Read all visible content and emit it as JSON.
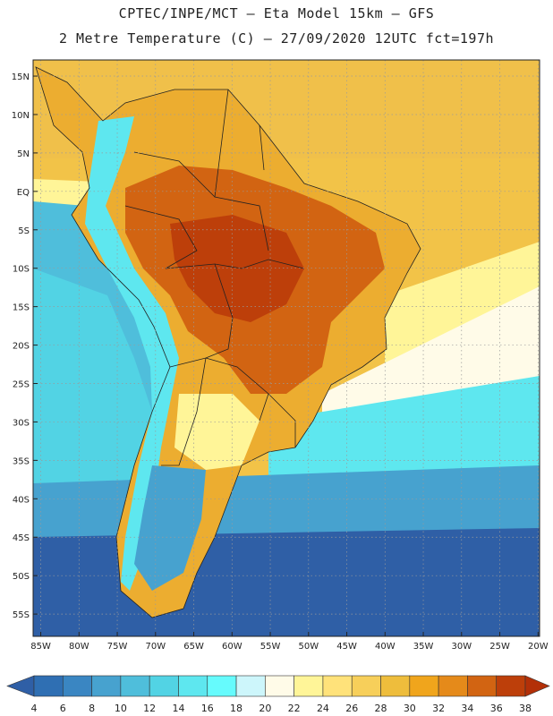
{
  "title_line1": "CPTEC/INPE/MCT –  Eta Model 15km – GFS",
  "title_line2": "2 Metre Temperature (C) – 27/09/2020 12UTC fct=197h",
  "lat_labels": [
    "15N",
    "10N",
    "5N",
    "EQ",
    "5S",
    "10S",
    "15S",
    "20S",
    "25S",
    "30S",
    "35S",
    "40S",
    "45S",
    "50S",
    "55S"
  ],
  "lon_labels": [
    "85W",
    "80W",
    "75W",
    "70W",
    "65W",
    "60W",
    "55W",
    "50W",
    "45W",
    "40W",
    "35W",
    "30W",
    "25W",
    "20W"
  ],
  "colorbar": {
    "labels": [
      "4",
      "6",
      "8",
      "10",
      "12",
      "14",
      "16",
      "18",
      "20",
      "22",
      "24",
      "26",
      "28",
      "30",
      "32",
      "34",
      "36",
      "38"
    ],
    "colors": [
      "#2f5fa6",
      "#2f6fb3",
      "#3a86c2",
      "#47a2cf",
      "#4fbedb",
      "#52d3e4",
      "#5ee7ef",
      "#66fbfd",
      "#cdf6fb",
      "#fffbe8",
      "#fff598",
      "#ffe27a",
      "#f7cf5a",
      "#eebd3c",
      "#f0a51c",
      "#e58a1a",
      "#d26412",
      "#bd3f0a",
      "#b33008"
    ],
    "ocean_color": "#e8c34e"
  }
}
